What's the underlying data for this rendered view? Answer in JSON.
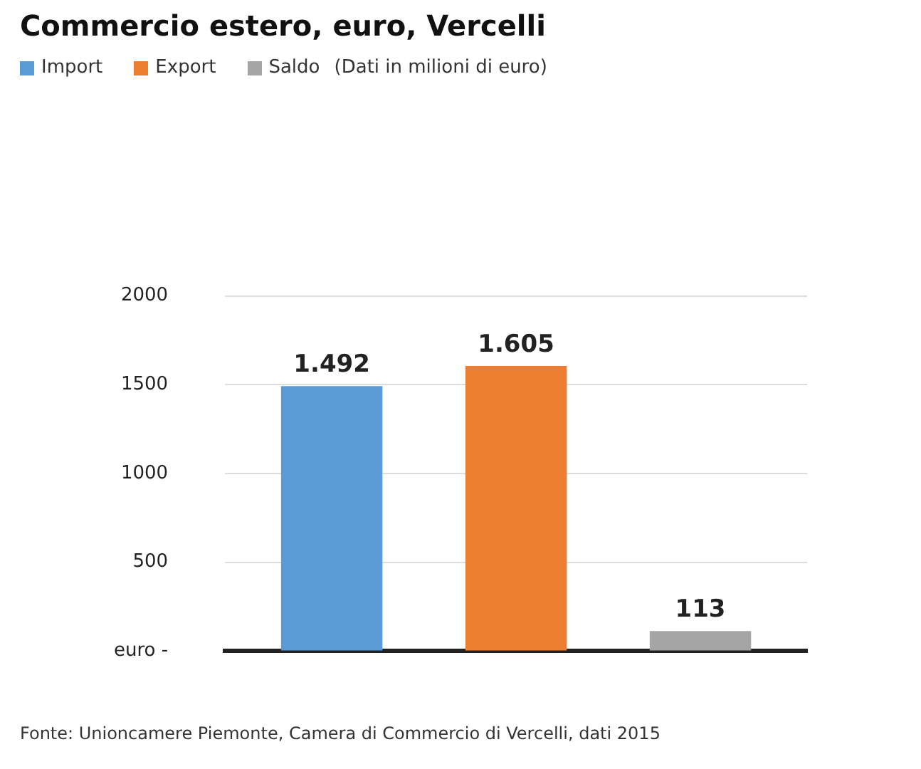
{
  "chart_data": {
    "type": "bar",
    "title": "Commercio estero, euro, Vercelli",
    "subtitle": "(Dati in milioni di euro)",
    "categories": [
      null
    ],
    "series": [
      {
        "name": "Import",
        "color": "#5b9bd5",
        "values": [
          1492
        ],
        "value_labels": [
          "1.492"
        ]
      },
      {
        "name": "Export",
        "color": "#ed7d31",
        "values": [
          1605
        ],
        "value_labels": [
          "1.605"
        ]
      },
      {
        "name": "Saldo",
        "color": "#a5a5a5",
        "values": [
          113
        ],
        "value_labels": [
          "113"
        ]
      }
    ],
    "ylim": [
      0,
      2000
    ],
    "yticks": [
      {
        "value": 0,
        "label": "euro -"
      },
      500,
      1000,
      1500,
      2000
    ],
    "grid": "y",
    "legend": "top left",
    "annotations": [
      "Fonte: Unioncamere Piemonte, Camera di Commercio di Vercelli, dati 2015"
    ]
  }
}
